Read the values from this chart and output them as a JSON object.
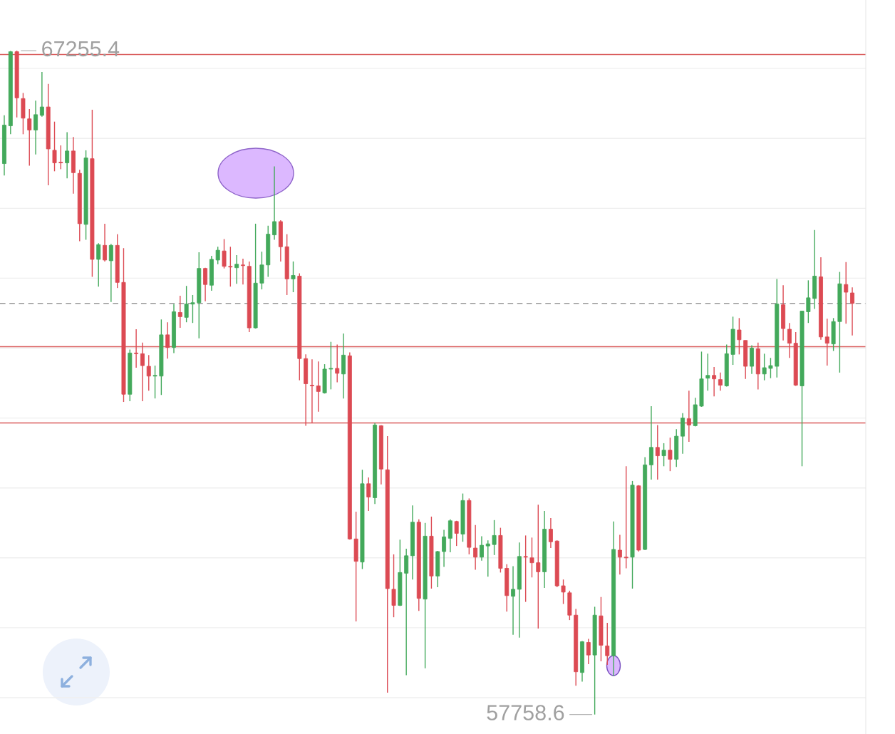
{
  "chart_data": {
    "type": "candlestick",
    "categories": [
      null,
      null,
      null,
      null,
      null,
      null,
      null,
      null,
      null,
      null,
      null,
      null,
      null,
      null,
      null,
      null,
      null,
      null,
      null,
      null,
      null,
      null,
      null,
      null,
      null,
      null,
      null,
      null,
      null,
      null,
      null,
      null,
      null,
      null,
      null,
      null,
      null,
      null,
      null,
      null,
      null,
      null,
      null,
      null,
      null,
      null,
      null,
      null,
      null,
      null,
      null,
      null,
      null,
      null,
      null,
      null,
      null,
      null,
      null,
      null,
      null,
      null,
      null,
      null,
      null,
      null,
      null,
      null,
      null,
      null,
      null,
      null,
      null,
      null,
      null,
      null,
      null,
      null,
      null,
      null,
      null,
      null,
      null,
      null,
      null,
      null,
      null,
      null,
      null,
      null,
      null,
      null,
      null,
      null,
      null,
      null,
      null,
      null,
      null,
      null,
      null,
      null,
      null,
      null,
      null,
      null,
      null,
      null,
      null,
      null,
      null,
      null,
      null,
      null,
      null,
      null,
      null,
      null,
      null,
      null,
      null,
      null,
      null,
      null,
      null,
      null,
      null,
      null,
      null,
      null,
      null,
      null,
      null,
      null,
      null,
      null
    ],
    "ohlc": [
      [
        65640,
        66330,
        65470,
        66190
      ],
      [
        66180,
        67250,
        66060,
        67240
      ],
      [
        67240,
        67255.4,
        66300,
        66580
      ],
      [
        66570,
        66650,
        66060,
        66290
      ],
      [
        66280,
        66420,
        65610,
        66120
      ],
      [
        66120,
        66540,
        65770,
        66340
      ],
      [
        66330,
        66950,
        66310,
        66450
      ],
      [
        66450,
        66780,
        65330,
        65850
      ],
      [
        65830,
        66240,
        65530,
        65650
      ],
      [
        65660,
        65900,
        65560,
        65650
      ],
      [
        65650,
        66090,
        65430,
        65820
      ],
      [
        65820,
        66020,
        65210,
        65510
      ],
      [
        65500,
        65550,
        64530,
        64780
      ],
      [
        64770,
        65830,
        64550,
        65720
      ],
      [
        65710,
        66410,
        64020,
        64270
      ],
      [
        64270,
        64500,
        63880,
        64480
      ],
      [
        64470,
        64780,
        64240,
        64260
      ],
      [
        64250,
        64490,
        63660,
        64470
      ],
      [
        64470,
        64630,
        63860,
        63940
      ],
      [
        63940,
        64430,
        62230,
        62340
      ],
      [
        62340,
        62980,
        62240,
        62930
      ],
      [
        62930,
        63270,
        62720,
        62920
      ],
      [
        62920,
        63080,
        62240,
        62750
      ],
      [
        62740,
        62900,
        62390,
        62600
      ],
      [
        62600,
        62750,
        62280,
        62610
      ],
      [
        62600,
        63410,
        62330,
        63190
      ],
      [
        63190,
        63370,
        62850,
        63010
      ],
      [
        63010,
        63630,
        62930,
        63520
      ],
      [
        63510,
        63750,
        63290,
        63450
      ],
      [
        63440,
        63890,
        63370,
        63630
      ],
      [
        63630,
        63760,
        63360,
        63650
      ],
      [
        63650,
        64370,
        63140,
        64140
      ],
      [
        64140,
        64150,
        63670,
        63910
      ],
      [
        63900,
        64320,
        63820,
        64270
      ],
      [
        64260,
        64450,
        64200,
        64400
      ],
      [
        64390,
        64560,
        64140,
        64170
      ],
      [
        64170,
        64450,
        63880,
        64160
      ],
      [
        64150,
        64330,
        63920,
        64200
      ],
      [
        64190,
        64280,
        63910,
        64180
      ],
      [
        64170,
        64240,
        63230,
        63290
      ],
      [
        63290,
        64780,
        63280,
        63930
      ],
      [
        63930,
        64380,
        63840,
        64190
      ],
      [
        64190,
        64750,
        64020,
        64630
      ],
      [
        64620,
        65600,
        64550,
        64810
      ],
      [
        64810,
        64830,
        64240,
        64450
      ],
      [
        64450,
        64630,
        63760,
        63990
      ],
      [
        63990,
        64240,
        63800,
        64040
      ],
      [
        64030,
        64070,
        62540,
        62850
      ],
      [
        62850,
        62910,
        61890,
        62490
      ],
      [
        62470,
        62840,
        61930,
        62460
      ],
      [
        62460,
        62810,
        62090,
        62380
      ],
      [
        62360,
        62770,
        62350,
        62700
      ],
      [
        62700,
        63090,
        62410,
        62710
      ],
      [
        62710,
        63050,
        62510,
        62640
      ],
      [
        62630,
        63210,
        62280,
        62900
      ],
      [
        62890,
        62940,
        60260,
        60270
      ],
      [
        60270,
        60660,
        59090,
        59950
      ],
      [
        59940,
        61260,
        59840,
        61060
      ],
      [
        61060,
        61150,
        60670,
        60870
      ],
      [
        60860,
        61930,
        60770,
        61900
      ],
      [
        61890,
        61900,
        61050,
        61270
      ],
      [
        61260,
        61740,
        58070,
        59560
      ],
      [
        59550,
        60050,
        59150,
        59320
      ],
      [
        59320,
        60260,
        59310,
        59790
      ],
      [
        59780,
        60130,
        58320,
        60030
      ],
      [
        60030,
        60750,
        59690,
        60510
      ],
      [
        60510,
        60550,
        59240,
        59420
      ],
      [
        59410,
        60500,
        58420,
        60310
      ],
      [
        60310,
        60590,
        59560,
        59740
      ],
      [
        59740,
        60100,
        59580,
        60090
      ],
      [
        60090,
        60400,
        59870,
        60300
      ],
      [
        60280,
        60550,
        60080,
        60530
      ],
      [
        60520,
        60530,
        60170,
        60350
      ],
      [
        60340,
        60920,
        60230,
        60820
      ],
      [
        60820,
        60850,
        60050,
        60150
      ],
      [
        60140,
        60470,
        59830,
        60010
      ],
      [
        60010,
        60310,
        59960,
        60180
      ],
      [
        60170,
        60250,
        59730,
        60200
      ],
      [
        60190,
        60540,
        60040,
        60320
      ],
      [
        60320,
        60430,
        59790,
        59850
      ],
      [
        59850,
        59910,
        59230,
        59460
      ],
      [
        59450,
        59880,
        58900,
        59550
      ],
      [
        59550,
        60220,
        58860,
        60020
      ],
      [
        60020,
        60320,
        59370,
        60010
      ],
      [
        60000,
        60290,
        59720,
        59930
      ],
      [
        59930,
        60760,
        58990,
        59800
      ],
      [
        59800,
        60670,
        59570,
        60410
      ],
      [
        60410,
        60570,
        60140,
        60230
      ],
      [
        60240,
        60250,
        59580,
        59600
      ],
      [
        59600,
        59690,
        59340,
        59510
      ],
      [
        59500,
        59530,
        59110,
        59180
      ],
      [
        59180,
        59270,
        58170,
        58370
      ],
      [
        58360,
        58810,
        58230,
        58800
      ],
      [
        58790,
        58840,
        58480,
        58610
      ],
      [
        58610,
        59300,
        57758.6,
        59180
      ],
      [
        59170,
        59440,
        58520,
        58750
      ],
      [
        58740,
        59070,
        58470,
        58600
      ],
      [
        58600,
        60520,
        58310,
        60120
      ],
      [
        60110,
        60330,
        59760,
        60010
      ],
      [
        60010,
        61310,
        59850,
        60000
      ],
      [
        60010,
        61100,
        59560,
        61040
      ],
      [
        61030,
        61040,
        60090,
        60110
      ],
      [
        60120,
        61440,
        60110,
        61330
      ],
      [
        61330,
        62170,
        61120,
        61580
      ],
      [
        61580,
        61900,
        61120,
        61460
      ],
      [
        61460,
        61640,
        61310,
        61540
      ],
      [
        61540,
        61720,
        61240,
        61410
      ],
      [
        61410,
        61840,
        61300,
        61740
      ],
      [
        61740,
        62070,
        61490,
        62000
      ],
      [
        61990,
        62390,
        61660,
        61900
      ],
      [
        61890,
        62290,
        61880,
        62190
      ],
      [
        62170,
        62950,
        62160,
        62560
      ],
      [
        62570,
        62920,
        62390,
        62610
      ],
      [
        62610,
        62730,
        62310,
        62560
      ],
      [
        62550,
        62650,
        62390,
        62470
      ],
      [
        62460,
        63050,
        62450,
        62920
      ],
      [
        62910,
        63450,
        62760,
        63270
      ],
      [
        63260,
        63430,
        62910,
        63120
      ],
      [
        63110,
        63110,
        62560,
        62740
      ],
      [
        62740,
        63040,
        62630,
        63000
      ],
      [
        62990,
        63080,
        62410,
        62630
      ],
      [
        62630,
        62920,
        62540,
        62720
      ],
      [
        62710,
        62860,
        62570,
        62750
      ],
      [
        62740,
        63990,
        62580,
        63630
      ],
      [
        63620,
        63900,
        63110,
        63280
      ],
      [
        63270,
        63360,
        62860,
        63070
      ],
      [
        63070,
        63230,
        62460,
        62470
      ],
      [
        62460,
        63530,
        61310,
        63530
      ],
      [
        63520,
        63970,
        63360,
        63720
      ],
      [
        63710,
        64690,
        63560,
        64030
      ],
      [
        64020,
        64300,
        63120,
        63160
      ],
      [
        63160,
        63420,
        62750,
        63070
      ],
      [
        63060,
        63430,
        62960,
        63380
      ],
      [
        63380,
        64090,
        62650,
        63920
      ],
      [
        63910,
        64230,
        63350,
        63800
      ],
      [
        63790,
        63870,
        63180,
        63640
      ]
    ],
    "colors": [
      "#43a95b",
      "#43a95b",
      "#dc4a53",
      "#dc4a53",
      "#dc4a53",
      "#43a95b",
      "#43a95b",
      "#dc4a53",
      "#dc4a53",
      "#dc4a53",
      "#43a95b",
      "#dc4a53",
      "#dc4a53",
      "#43a95b",
      "#dc4a53",
      "#43a95b",
      "#dc4a53",
      "#43a95b",
      "#dc4a53",
      "#dc4a53",
      "#43a95b",
      "#dc4a53",
      "#dc4a53",
      "#dc4a53",
      "#43a95b",
      "#43a95b",
      "#dc4a53",
      "#43a95b",
      "#dc4a53",
      "#43a95b",
      "#43a95b",
      "#43a95b",
      "#dc4a53",
      "#43a95b",
      "#43a95b",
      "#dc4a53",
      "#dc4a53",
      "#43a95b",
      "#dc4a53",
      "#dc4a53",
      "#43a95b",
      "#43a95b",
      "#43a95b",
      "#43a95b",
      "#dc4a53",
      "#dc4a53",
      "#43a95b",
      "#dc4a53",
      "#dc4a53",
      "#dc4a53",
      "#dc4a53",
      "#43a95b",
      "#43a95b",
      "#dc4a53",
      "#43a95b",
      "#dc4a53",
      "#dc4a53",
      "#43a95b",
      "#dc4a53",
      "#43a95b",
      "#dc4a53",
      "#dc4a53",
      "#dc4a53",
      "#43a95b",
      "#43a95b",
      "#43a95b",
      "#dc4a53",
      "#43a95b",
      "#dc4a53",
      "#43a95b",
      "#43a95b",
      "#43a95b",
      "#dc4a53",
      "#43a95b",
      "#dc4a53",
      "#dc4a53",
      "#43a95b",
      "#43a95b",
      "#43a95b",
      "#dc4a53",
      "#dc4a53",
      "#43a95b",
      "#43a95b",
      "#dc4a53",
      "#dc4a53",
      "#dc4a53",
      "#43a95b",
      "#dc4a53",
      "#dc4a53",
      "#dc4a53",
      "#dc4a53",
      "#dc4a53",
      "#43a95b",
      "#dc4a53",
      "#43a95b",
      "#dc4a53",
      "#dc4a53",
      "#43a95b",
      "#dc4a53",
      "#dc4a53",
      "#43a95b",
      "#dc4a53",
      "#43a95b",
      "#43a95b",
      "#dc4a53",
      "#43a95b",
      "#dc4a53",
      "#43a95b",
      "#43a95b",
      "#dc4a53",
      "#43a95b",
      "#43a95b",
      "#43a95b",
      "#dc4a53",
      "#dc4a53",
      "#43a95b",
      "#43a95b",
      "#dc4a53",
      "#dc4a53",
      "#43a95b",
      "#dc4a53",
      "#43a95b",
      "#43a95b",
      "#43a95b",
      "#dc4a53",
      "#dc4a53",
      "#dc4a53",
      "#43a95b",
      "#43a95b",
      "#43a95b",
      "#dc4a53",
      "#dc4a53",
      "#43a95b",
      "#43a95b",
      "#dc4a53",
      "#dc4a53"
    ],
    "ylim": [
      57480,
      67980
    ],
    "yticks": [
      {
        "value": 58000,
        "label": null
      },
      {
        "value": 59000,
        "label": null
      },
      {
        "value": 60000,
        "label": null
      },
      {
        "value": 61000,
        "label": null
      },
      {
        "value": 62000,
        "label": null
      },
      {
        "value": 63000,
        "label": null
      },
      {
        "value": 64000,
        "label": null
      },
      {
        "value": 65000,
        "label": null
      },
      {
        "value": 66000,
        "label": null
      },
      {
        "value": 67000,
        "label": null
      }
    ],
    "grid": "y",
    "ref_lines": [
      {
        "axis": "y",
        "value": 67200,
        "color": "#d95c5c",
        "line_style": "solid"
      },
      {
        "axis": "y",
        "value": 63640,
        "color": "#999999",
        "line_style": "dashed"
      },
      {
        "axis": "y",
        "value": 63020,
        "color": "#d95c5c",
        "line_style": "solid"
      },
      {
        "axis": "y",
        "value": 61930,
        "color": "#d95c5c",
        "line_style": "solid"
      }
    ],
    "annotations": [
      "67255.4",
      "57758.6"
    ]
  }
}
